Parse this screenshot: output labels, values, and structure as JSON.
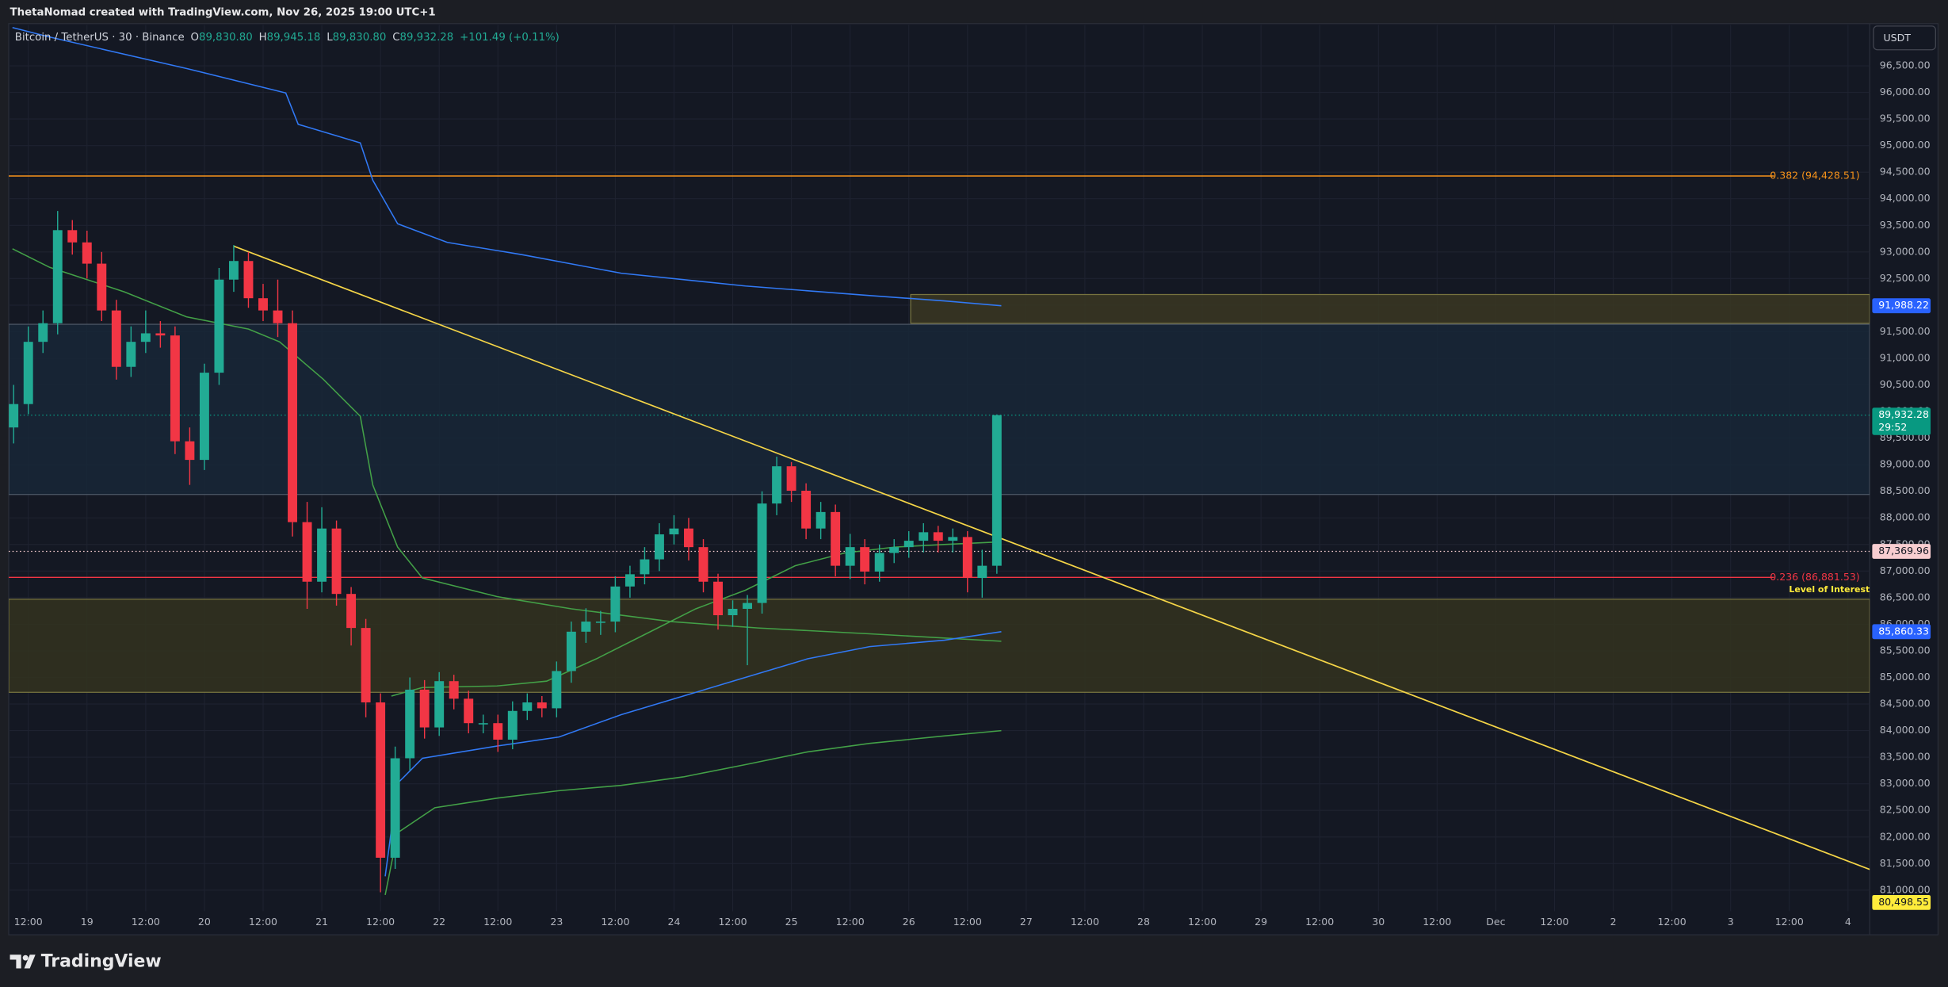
{
  "header": {
    "caption": "ThetaNomad created with TradingView.com, Nov 26, 2025 19:00 UTC+1"
  },
  "legend": {
    "symbol": "Bitcoin / TetherUS · 30 · Binance",
    "ohlc": [
      {
        "key": "O",
        "value": "89,830.80"
      },
      {
        "key": "H",
        "value": "89,945.18"
      },
      {
        "key": "L",
        "value": "89,830.80"
      },
      {
        "key": "C",
        "value": "89,932.28"
      }
    ],
    "change": "+101.49 (+0.11%)"
  },
  "currency_button": "USDT",
  "footer": {
    "brand": "TradingView"
  },
  "chart_data": {
    "type": "candlestick",
    "xlim": [
      18.333,
      34.185
    ],
    "ylim": [
      80605,
      97270
    ],
    "grid": true,
    "up_color": "#22ab94",
    "down_color": "#f23645",
    "xticks": [
      {
        "value": 18.5,
        "label": "12:00"
      },
      19,
      {
        "value": 19.5,
        "label": "12:00"
      },
      20,
      {
        "value": 20.5,
        "label": "12:00"
      },
      21,
      {
        "value": 21.5,
        "label": "12:00"
      },
      22,
      {
        "value": 22.5,
        "label": "12:00"
      },
      23,
      {
        "value": 23.5,
        "label": "12:00"
      },
      24,
      {
        "value": 24.5,
        "label": "12:00"
      },
      25,
      {
        "value": 25.5,
        "label": "12:00"
      },
      26,
      {
        "value": 26.5,
        "label": "12:00"
      },
      27,
      {
        "value": 27.5,
        "label": "12:00"
      },
      28,
      {
        "value": 28.5,
        "label": "12:00"
      },
      29,
      {
        "value": 29.5,
        "label": "12:00"
      },
      30,
      {
        "value": 30.5,
        "label": "12:00"
      },
      {
        "value": 31,
        "label": "Dec"
      },
      {
        "value": 31.5,
        "label": "12:00"
      },
      {
        "value": 32,
        "label": "2"
      },
      {
        "value": 32.5,
        "label": "12:00"
      },
      {
        "value": 33,
        "label": "3"
      },
      {
        "value": 33.5,
        "label": "12:00"
      },
      {
        "value": 34,
        "label": "4"
      }
    ],
    "yticks": [
      {
        "value": 81000,
        "label": "81,000.00"
      },
      {
        "value": 81500,
        "label": "81,500.00"
      },
      {
        "value": 82000,
        "label": "82,000.00"
      },
      {
        "value": 82500,
        "label": "82,500.00"
      },
      {
        "value": 83000,
        "label": "83,000.00"
      },
      {
        "value": 83500,
        "label": "83,500.00"
      },
      {
        "value": 84000,
        "label": "84,000.00"
      },
      {
        "value": 84500,
        "label": "84,500.00"
      },
      {
        "value": 85000,
        "label": "85,000.00"
      },
      {
        "value": 85500,
        "label": "85,500.00"
      },
      {
        "value": 86000,
        "label": "86,000.00"
      },
      {
        "value": 86500,
        "label": "86,500.00"
      },
      {
        "value": 87000,
        "label": "87,000.00"
      },
      {
        "value": 87500,
        "label": "87,500.00"
      },
      {
        "value": 88000,
        "label": "88,000.00"
      },
      {
        "value": 88500,
        "label": "88,500.00"
      },
      {
        "value": 89000,
        "label": "89,000.00"
      },
      {
        "value": 89500,
        "label": "89,500.00"
      },
      {
        "value": 90000,
        "label": "90,000.00"
      },
      {
        "value": 90500,
        "label": "90,500.00"
      },
      {
        "value": 91000,
        "label": "91,000.00"
      },
      {
        "value": 91500,
        "label": "91,500.00"
      },
      {
        "value": 92000,
        "label": "92,000.00"
      },
      {
        "value": 92500,
        "label": "92,500.00"
      },
      {
        "value": 93000,
        "label": "93,000.00"
      },
      {
        "value": 93500,
        "label": "93,500.00"
      },
      {
        "value": 94000,
        "label": "94,000.00"
      },
      {
        "value": 94500,
        "label": "94,500.00"
      },
      {
        "value": 95000,
        "label": "95,000.00"
      },
      {
        "value": 95500,
        "label": "95,500.00"
      },
      {
        "value": 96000,
        "label": "96,000.00"
      },
      {
        "value": 96500,
        "label": "96,500.00"
      }
    ],
    "candles": {
      "x": [
        18.375,
        18.5,
        18.625,
        18.75,
        18.875,
        19,
        19.125,
        19.25,
        19.375,
        19.5,
        19.625,
        19.75,
        19.875,
        20,
        20.125,
        20.25,
        20.375,
        20.5,
        20.625,
        20.75,
        20.875,
        21,
        21.125,
        21.25,
        21.375,
        21.5,
        21.625,
        21.75,
        21.875,
        22,
        22.125,
        22.25,
        22.375,
        22.5,
        22.625,
        22.75,
        22.875,
        23,
        23.125,
        23.25,
        23.375,
        23.5,
        23.625,
        23.75,
        23.875,
        24,
        24.125,
        24.25,
        24.375,
        24.5,
        24.625,
        24.75,
        24.875,
        25,
        25.125,
        25.25,
        25.375,
        25.5,
        25.625,
        25.75,
        25.875,
        26,
        26.125,
        26.25,
        26.375,
        26.5,
        26.625,
        26.75
      ],
      "open": [
        89700,
        90140,
        91310,
        91660,
        93410,
        93180,
        92780,
        91900,
        90840,
        91310,
        91470,
        91430,
        89440,
        89090,
        90730,
        92480,
        92830,
        92130,
        91900,
        91660,
        87920,
        86800,
        87800,
        86570,
        85930,
        84530,
        81610,
        83480,
        84770,
        84060,
        84930,
        84600,
        84140,
        84140,
        83830,
        84370,
        84530,
        84420,
        85120,
        85860,
        86050,
        86050,
        86710,
        86940,
        87220,
        87690,
        87800,
        87450,
        86800,
        86170,
        86290,
        86400,
        88270,
        88970,
        88510,
        87800,
        88110,
        87100,
        87450,
        86990,
        87340,
        87450,
        87570,
        87730,
        87570,
        87640,
        86870,
        87100
      ],
      "high": [
        90500,
        91600,
        91900,
        93770,
        93600,
        93400,
        93000,
        92100,
        91600,
        91900,
        91700,
        91600,
        89700,
        90900,
        92700,
        93130,
        93000,
        92400,
        92480,
        91900,
        88300,
        88200,
        87950,
        86700,
        86100,
        84700,
        83700,
        85000,
        84950,
        85100,
        85050,
        84750,
        84300,
        84300,
        84550,
        84700,
        84650,
        85300,
        86050,
        86300,
        86250,
        86900,
        87100,
        87450,
        87900,
        88050,
        88000,
        87600,
        86950,
        86450,
        86550,
        88500,
        89150,
        89050,
        88650,
        88300,
        88250,
        87700,
        87600,
        87500,
        87600,
        87750,
        87900,
        87850,
        87800,
        87750,
        87400,
        89945.18
      ],
      "low": [
        89400,
        89950,
        91100,
        91450,
        92950,
        92500,
        91700,
        90600,
        90650,
        91100,
        91200,
        89200,
        88620,
        88900,
        90500,
        92250,
        91950,
        91700,
        91400,
        87650,
        86290,
        86600,
        86350,
        85600,
        84250,
        80960,
        81400,
        83250,
        83850,
        83900,
        84400,
        83950,
        83950,
        83600,
        83650,
        84200,
        84250,
        84250,
        84900,
        85650,
        85800,
        85850,
        86500,
        86750,
        87000,
        87500,
        87200,
        86600,
        85900,
        85950,
        85230,
        86200,
        88050,
        88300,
        87600,
        87600,
        86900,
        86850,
        86750,
        86800,
        87150,
        87250,
        87350,
        87350,
        87350,
        86600,
        86500,
        86950
      ],
      "close": [
        90140,
        91310,
        91660,
        93410,
        93180,
        92780,
        91900,
        90840,
        91310,
        91470,
        91430,
        89440,
        89090,
        90730,
        92480,
        92830,
        92130,
        91900,
        91660,
        87920,
        86800,
        87800,
        86570,
        85930,
        84530,
        81610,
        83480,
        84770,
        84060,
        84930,
        84600,
        84140,
        84140,
        83830,
        84370,
        84530,
        84420,
        85120,
        85860,
        86050,
        86050,
        86710,
        86940,
        87220,
        87690,
        87800,
        87450,
        86800,
        86170,
        86290,
        86400,
        88270,
        88970,
        88510,
        87800,
        88110,
        87100,
        87450,
        86990,
        87340,
        87450,
        87570,
        87730,
        87570,
        87640,
        86870,
        87100,
        89932.28
      ]
    },
    "lines": [
      {
        "color": "#3179f5",
        "x": [
          18.365,
          18.683,
          19.847,
          20.693,
          20.799,
          21.328,
          21.434,
          21.646,
          22.069,
          22.704,
          23.55,
          24.608,
          25.667,
          26.302,
          26.788
        ],
        "y": [
          97220,
          97040,
          96450,
          95990,
          95400,
          95050,
          94350,
          93530,
          93180,
          92950,
          92600,
          92360,
          92180,
          92080,
          91988.22
        ]
      },
      {
        "color": "#43a047",
        "x": [
          18.365,
          18.683,
          19.317,
          19.847,
          20.376,
          20.64,
          21.011,
          21.328,
          21.434,
          21.646,
          21.857,
          22.492,
          23.127,
          23.974,
          24.714,
          25.667,
          26.788
        ],
        "y": [
          93060,
          92710,
          92250,
          91780,
          91550,
          91310,
          90610,
          89910,
          88620,
          87450,
          86870,
          86520,
          86290,
          86050,
          85930,
          85820,
          85680
        ]
      },
      {
        "color": "#3179f5",
        "x": [
          21.54,
          21.646,
          21.857,
          22.492,
          23.021,
          23.55,
          24.079,
          24.608,
          25.138,
          25.667,
          26.302,
          26.788
        ],
        "y": [
          81260,
          83010,
          83480,
          83710,
          83880,
          84300,
          84650,
          85000,
          85350,
          85580,
          85700,
          85860.33
        ]
      },
      {
        "color": "#43a047",
        "x": [
          21.54,
          21.646,
          21.963,
          22.492,
          23.021,
          23.55,
          24.079,
          24.608,
          25.138,
          25.667,
          26.302,
          26.788
        ],
        "y": [
          80910,
          82080,
          82550,
          82730,
          82870,
          82970,
          83130,
          83360,
          83600,
          83760,
          83900,
          84000
        ]
      },
      {
        "color": "#43a047",
        "x": [
          21.593,
          21.857,
          22.492,
          22.915,
          23.339,
          23.762,
          24.185,
          24.608,
          25.032,
          25.455,
          25.878,
          26.302,
          26.788
        ],
        "y": [
          84650,
          84810,
          84840,
          84930,
          85350,
          85820,
          86290,
          86640,
          87100,
          87340,
          87450,
          87500,
          87550
        ]
      }
    ],
    "trendline": {
      "color": "#f5d547",
      "x": [
        20.249,
        34.185
      ],
      "y": [
        93110,
        81390
      ]
    },
    "zones": [
      {
        "color": "#172737",
        "border": "#4d5866",
        "x": [
          18.333,
          34.185
        ],
        "top": 91640,
        "bottom": 88440
      },
      {
        "color": "#33321f",
        "border": "#77733f",
        "x": [
          18.333,
          34.185
        ],
        "top": 86470,
        "bottom": 84720
      },
      {
        "color": "#3a3722",
        "border": "#77733f",
        "x": [
          26.016,
          34.185
        ],
        "top": 92200,
        "bottom": 91660
      }
    ],
    "levels": [
      {
        "label": "0.382 (94,428.51)",
        "value": 94428.51,
        "color": "#f7931a"
      },
      {
        "label": "0.236 (86,881.53)",
        "value": 86881.53,
        "color": "#f23645",
        "note": "Level of Interest"
      }
    ],
    "price_labels": [
      {
        "label": "91,988.22",
        "value": 91988.22,
        "color": "#2962ff",
        "text_color": "#ffffff"
      },
      {
        "label": "89,932.28",
        "countdown": "29:52",
        "value": 89932.28,
        "color": "#089981",
        "text_color": "#ffffff",
        "line": "dotted"
      },
      {
        "label": "87,369.96",
        "value": 87369.96,
        "color": "#f7cdd0",
        "text_color": "#131722",
        "line": "dotted"
      },
      {
        "label": "85,860.33",
        "value": 85860.33,
        "color": "#2962ff",
        "text_color": "#ffffff"
      },
      {
        "label": "80,498.55",
        "value": 80498.55,
        "color": "#ffeb3b",
        "text_color": "#131722"
      }
    ]
  }
}
